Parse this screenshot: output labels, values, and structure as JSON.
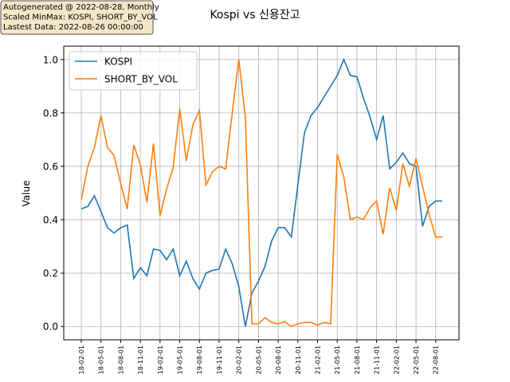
{
  "chart_data": {
    "type": "line",
    "title": "Kospi vs 신용잔고",
    "annotation": [
      "Autogenerated @ 2022-08-28, Monthly",
      "Scaled MinMax: KOSPI, SHORT_BY_VOL",
      "Lastest Data: 2022-08-26 00:00:00"
    ],
    "y_label": "Value",
    "categories": [
      "18-02-01",
      null,
      null,
      "18-05-01",
      null,
      null,
      "18-08-01",
      null,
      null,
      "18-11-01",
      null,
      null,
      "19-02-01",
      null,
      null,
      "19-05-01",
      null,
      null,
      "19-08-01",
      null,
      null,
      "19-11-01",
      null,
      null,
      "20-02-01",
      null,
      null,
      "20-05-01",
      null,
      null,
      "20-08-01",
      null,
      null,
      "20-11-01",
      null,
      null,
      "21-02-01",
      null,
      null,
      "21-05-01",
      null,
      null,
      "21-08-01",
      null,
      null,
      "21-11-01",
      null,
      null,
      "22-02-01",
      null,
      null,
      "22-05-01",
      null,
      null,
      "22-08-01",
      null
    ],
    "series": [
      {
        "name": "KOSPI",
        "color": "#1f77b4",
        "values": [
          0.44,
          0.45,
          0.49,
          0.43,
          0.37,
          0.35,
          0.37,
          0.38,
          0.18,
          0.22,
          0.19,
          0.29,
          0.285,
          0.25,
          0.29,
          0.19,
          0.245,
          0.18,
          0.14,
          0.2,
          0.21,
          0.215,
          0.29,
          0.235,
          0.15,
          0.0,
          0.125,
          0.17,
          0.225,
          0.32,
          0.37,
          0.37,
          0.335,
          0.53,
          0.725,
          0.79,
          0.82,
          0.86,
          0.9,
          0.94,
          1.0,
          0.94,
          0.935,
          0.855,
          0.785,
          0.7,
          0.79,
          0.59,
          0.615,
          0.65,
          0.61,
          0.6,
          0.375,
          0.45,
          0.47,
          0.47
        ]
      },
      {
        "name": "SHORT_BY_VOL",
        "color": "#ff7f0e",
        "values": [
          0.475,
          0.6,
          0.67,
          0.79,
          0.67,
          0.64,
          0.535,
          0.44,
          0.68,
          0.605,
          0.465,
          0.685,
          0.415,
          0.515,
          0.595,
          0.815,
          0.62,
          0.755,
          0.81,
          0.53,
          0.58,
          0.6,
          0.59,
          0.8,
          1.0,
          0.785,
          0.01,
          0.01,
          0.033,
          0.015,
          0.01,
          0.018,
          0.0,
          0.01,
          0.015,
          0.015,
          0.005,
          0.015,
          0.01,
          0.645,
          0.56,
          0.4,
          0.41,
          0.4,
          0.445,
          0.47,
          0.345,
          0.52,
          0.435,
          0.61,
          0.525,
          0.63,
          0.525,
          0.42,
          0.335,
          0.335
        ]
      }
    ],
    "ylim": [
      -0.05,
      1.05
    ],
    "yticks": [
      {
        "value": 0,
        "label": "0.0"
      },
      {
        "value": 0.2,
        "label": "0.2"
      },
      {
        "value": 0.4,
        "label": "0.4"
      },
      {
        "value": 0.6,
        "label": "0.6"
      },
      {
        "value": 0.8,
        "label": "0.8"
      },
      {
        "value": 1,
        "label": "1.0"
      }
    ],
    "grid": true,
    "legend": "upper left"
  }
}
